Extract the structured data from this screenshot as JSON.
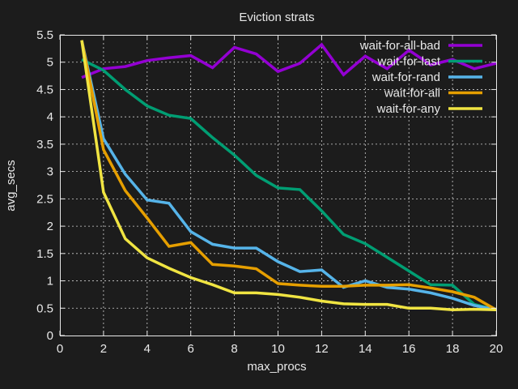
{
  "chart_data": {
    "type": "line",
    "title": "Eviction strats",
    "xlabel": "max_procs",
    "ylabel": "avg_secs",
    "xlim": [
      0,
      20
    ],
    "ylim": [
      0,
      5.5
    ],
    "xticks": [
      0,
      2,
      4,
      6,
      8,
      10,
      12,
      14,
      16,
      18,
      20
    ],
    "yticks": [
      0,
      0.5,
      1,
      1.5,
      2,
      2.5,
      3,
      3.5,
      4,
      4.5,
      5,
      5.5
    ],
    "xtick_labels": [
      "0",
      "2",
      "4",
      "6",
      "8",
      "10",
      "12",
      "14",
      "16",
      "18",
      "20"
    ],
    "ytick_labels": [
      "0",
      "0.5",
      "1",
      "1.5",
      "2",
      "2.5",
      "3",
      "3.5",
      "4",
      "4.5",
      "5",
      "5.5"
    ],
    "grid": true,
    "legend_position": "top-right",
    "x": [
      1,
      2,
      3,
      4,
      5,
      6,
      7,
      8,
      9,
      10,
      11,
      12,
      13,
      14,
      15,
      16,
      17,
      18,
      19,
      20
    ],
    "series": [
      {
        "name": "wait-for-all-bad",
        "color": "#9400d3",
        "values": [
          4.72,
          4.88,
          4.92,
          5.03,
          5.08,
          5.12,
          4.9,
          5.27,
          5.15,
          4.83,
          4.98,
          5.32,
          4.77,
          5.11,
          4.88,
          5.22,
          4.95,
          5.05,
          4.88,
          4.98
        ]
      },
      {
        "name": "wait-for-last",
        "color": "#009e73",
        "values": [
          5.05,
          4.85,
          4.5,
          4.2,
          4.03,
          3.97,
          3.62,
          3.3,
          2.93,
          2.7,
          2.67,
          2.28,
          1.85,
          1.68,
          1.43,
          1.18,
          0.93,
          0.92,
          0.57,
          0.47
        ]
      },
      {
        "name": "wait-for-rand",
        "color": "#56b4e9",
        "values": [
          5.4,
          3.6,
          2.95,
          2.48,
          2.42,
          1.9,
          1.67,
          1.6,
          1.6,
          1.35,
          1.17,
          1.2,
          0.88,
          1.0,
          0.88,
          0.85,
          0.78,
          0.68,
          0.55,
          0.47
        ]
      },
      {
        "name": "wait-for-all",
        "color": "#e69f00",
        "values": [
          5.4,
          3.4,
          2.65,
          2.15,
          1.63,
          1.7,
          1.3,
          1.27,
          1.22,
          0.95,
          0.92,
          0.9,
          0.9,
          0.92,
          0.92,
          0.93,
          0.87,
          0.8,
          0.7,
          0.47
        ]
      },
      {
        "name": "wait-for-any",
        "color": "#f0e442",
        "values": [
          5.4,
          2.62,
          1.77,
          1.42,
          1.23,
          1.06,
          0.93,
          0.78,
          0.78,
          0.75,
          0.7,
          0.63,
          0.58,
          0.57,
          0.57,
          0.5,
          0.5,
          0.47,
          0.48,
          0.47
        ]
      }
    ]
  }
}
